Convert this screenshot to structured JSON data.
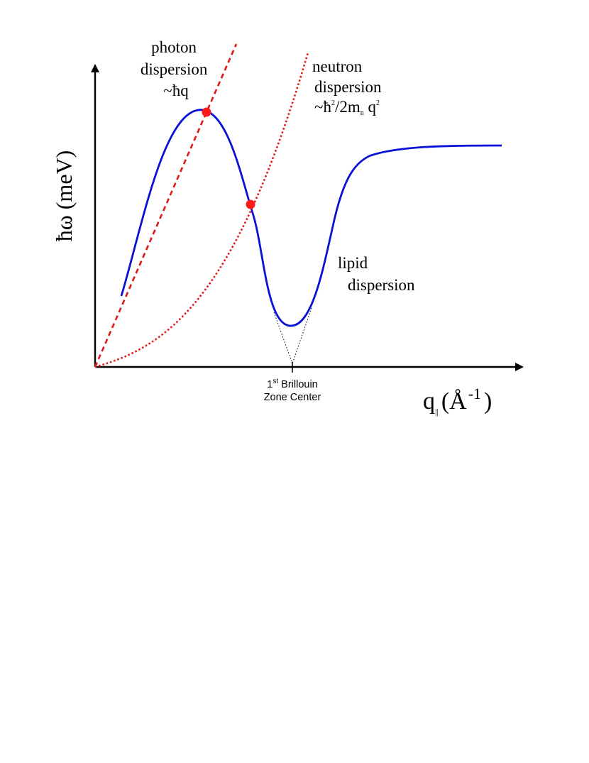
{
  "diagram": {
    "y_axis_label": "ħω (meV)",
    "x_axis_label": {
      "base": "q",
      "subscript": "||",
      "unit_open": "(Å",
      "unit_exponent": "-1",
      "unit_close": ")"
    },
    "zone_center_label": {
      "line1_prefix": "1",
      "line1_superscript": "st",
      "line1_suffix": " Brillouin",
      "line2": "Zone Center"
    },
    "photon": {
      "line1": "photon",
      "line2": "dispersion",
      "line3": "~ħq"
    },
    "neutron": {
      "line1": "neutron",
      "line2": "dispersion",
      "line3_prefix": "~ħ",
      "line3_sup1": "2",
      "line3_mid": "/2m",
      "line3_sub": "n",
      "line3_tail": " q",
      "line3_sup2": "2"
    },
    "lipid": {
      "line1": "lipid",
      "line2": "dispersion"
    },
    "colors": {
      "lipid_curve": "#0a12d6",
      "photon_line": "#e01818",
      "neutron_curve": "#e01818",
      "intersection_point": "#ff1a1a",
      "axes": "#000000",
      "extrapolation": "#000000"
    }
  }
}
